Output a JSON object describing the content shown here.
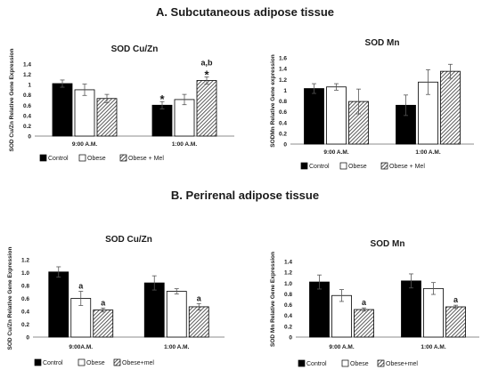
{
  "sections": {
    "a_title": "A. Subcutaneous adipose tissue",
    "b_title": "B. Perirenal adipose tissue"
  },
  "colors": {
    "control": "#000000",
    "obese": "#ffffff",
    "obese_mel": "#9a9a9a",
    "axis": "#8c8c8c",
    "text": "#1a1a1a"
  },
  "chart_data": [
    {
      "type": "bar",
      "title": "SOD Cu/Zn",
      "ylabel": "SOD Cu/Zn Relative Gene Expression",
      "xlabel": "",
      "ylim": [
        0,
        1.4
      ],
      "yticks": [
        "0",
        "0.2",
        "0.4",
        "0.6",
        "0.8",
        "1",
        "1.2",
        "1.4"
      ],
      "categories": [
        "9:00 A.M.",
        "1:00 A.M."
      ],
      "series": [
        {
          "name": "Control",
          "values": [
            1.02,
            0.6
          ],
          "errors": [
            0.07,
            0.07
          ],
          "annotations": [
            "",
            "*"
          ]
        },
        {
          "name": "Obese",
          "values": [
            0.9,
            0.71
          ],
          "errors": [
            0.11,
            0.1
          ],
          "annotations": [
            "",
            ""
          ]
        },
        {
          "name": "Obese + Mel",
          "values": [
            0.73,
            1.08
          ],
          "errors": [
            0.08,
            0.07
          ],
          "annotations": [
            "",
            "a,b\n*"
          ]
        }
      ],
      "legend": "bottom"
    },
    {
      "type": "bar",
      "title": "SOD Mn",
      "ylabel": "SODMn Relative Gene expression",
      "xlabel": "",
      "ylim": [
        0,
        1.6
      ],
      "yticks": [
        "0",
        "0.2",
        "0.4",
        "0.6",
        "0.8",
        "1",
        "1.2",
        "1.4",
        "1.6"
      ],
      "categories": [
        "9:00 A.M.",
        "1:00 A.M."
      ],
      "series": [
        {
          "name": "Control",
          "values": [
            1.03,
            0.72
          ],
          "errors": [
            0.09,
            0.19
          ],
          "annotations": [
            "",
            ""
          ]
        },
        {
          "name": "Obese",
          "values": [
            1.06,
            1.15
          ],
          "errors": [
            0.06,
            0.23
          ],
          "annotations": [
            "",
            ""
          ]
        },
        {
          "name": "Obese + Mel",
          "values": [
            0.79,
            1.35
          ],
          "errors": [
            0.23,
            0.13
          ],
          "annotations": [
            "",
            ""
          ]
        }
      ],
      "legend": "bottom"
    },
    {
      "type": "bar",
      "title": "SOD Cu/Zn",
      "ylabel": "SOD Cu/Zn Relative Gene Expression",
      "xlabel": "",
      "ylim": [
        0,
        1.2
      ],
      "yticks": [
        "0",
        "0.2",
        "0.4",
        "0.6",
        "0.8",
        "1.0",
        "1.2"
      ],
      "categories": [
        "9:00A.M.",
        "1:00 A.M."
      ],
      "series": [
        {
          "name": "Control",
          "values": [
            1.01,
            0.84
          ],
          "errors": [
            0.08,
            0.11
          ],
          "annotations": [
            "",
            ""
          ]
        },
        {
          "name": "Obese",
          "values": [
            0.6,
            0.71
          ],
          "errors": [
            0.11,
            0.04
          ],
          "annotations": [
            "a",
            ""
          ]
        },
        {
          "name": "Obese+mel",
          "values": [
            0.42,
            0.47
          ],
          "errors": [
            0.03,
            0.05
          ],
          "annotations": [
            "a",
            "a"
          ]
        }
      ],
      "legend": "bottom"
    },
    {
      "type": "bar",
      "title": "SOD Mn",
      "ylabel": "SOD Mn Relative Gene Expression",
      "xlabel": "",
      "ylim": [
        0,
        1.4
      ],
      "yticks": [
        "0",
        "0.2",
        "0.4",
        "0.6",
        "0.8",
        "1.0",
        "1.2",
        "1.4"
      ],
      "categories": [
        "9:00 A.M.",
        "1:00 A.M."
      ],
      "series": [
        {
          "name": "Control",
          "values": [
            1.02,
            1.04
          ],
          "errors": [
            0.13,
            0.13
          ],
          "annotations": [
            "",
            ""
          ]
        },
        {
          "name": "Obese",
          "values": [
            0.77,
            0.9
          ],
          "errors": [
            0.11,
            0.11
          ],
          "annotations": [
            "",
            ""
          ]
        },
        {
          "name": "Obese+mel",
          "values": [
            0.51,
            0.56
          ],
          "errors": [
            0.03,
            0.03
          ],
          "annotations": [
            "a",
            "a"
          ]
        }
      ],
      "legend": "bottom"
    }
  ]
}
